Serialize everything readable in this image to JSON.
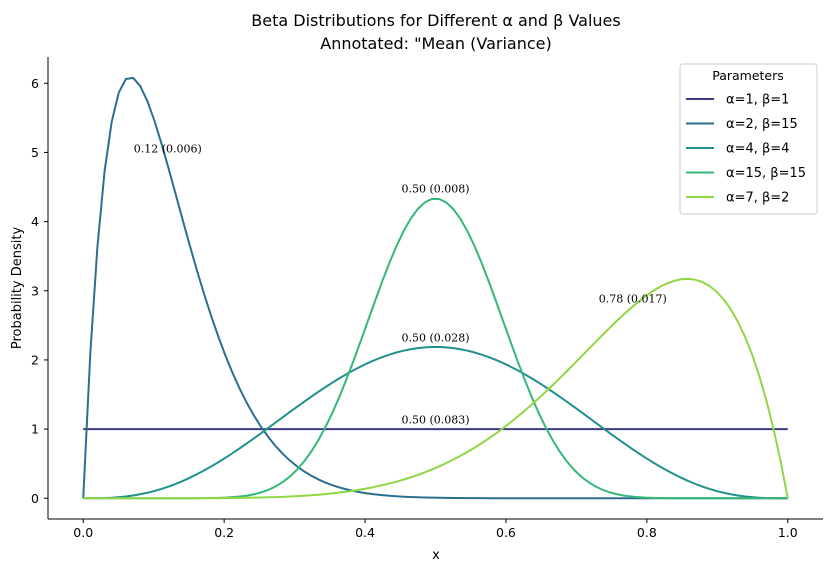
{
  "chart_data": {
    "type": "line",
    "title_line1": "Beta Distributions for Different α and β Values",
    "title_line2": "Annotated: \"Mean (Variance)",
    "xlabel": "x",
    "ylabel": "Probability Density",
    "xlim": [
      -0.05,
      1.05
    ],
    "ylim": [
      -0.3,
      6.38
    ],
    "xticks": [
      0.0,
      0.2,
      0.4,
      0.6,
      0.8,
      1.0
    ],
    "xtick_labels": [
      "0.0",
      "0.2",
      "0.4",
      "0.6",
      "0.8",
      "1.0"
    ],
    "yticks": [
      0,
      1,
      2,
      3,
      4,
      5,
      6
    ],
    "ytick_labels": [
      "0",
      "1",
      "2",
      "3",
      "4",
      "5",
      "6"
    ],
    "grid": false,
    "legend_title": "Parameters",
    "legend_position": "top-right",
    "series": [
      {
        "name": "α=1, β=1",
        "alpha": 1,
        "beta": 1,
        "color": "#3b3b84",
        "annotation": "0.50 (0.083)",
        "annotation_at": [
          0.5,
          1.08
        ]
      },
      {
        "name": "α=2, β=15",
        "alpha": 2,
        "beta": 15,
        "color": "#2c6e90",
        "annotation": "0.12 (0.006)",
        "annotation_at": [
          0.12,
          5.0
        ]
      },
      {
        "name": "α=4, β=4",
        "alpha": 4,
        "beta": 4,
        "color": "#21918c",
        "annotation": "0.50 (0.028)",
        "annotation_at": [
          0.5,
          2.27
        ]
      },
      {
        "name": "α=15, β=15",
        "alpha": 15,
        "beta": 15,
        "color": "#35b779",
        "annotation": "0.50 (0.008)",
        "annotation_at": [
          0.5,
          4.42
        ]
      },
      {
        "name": "α=7, β=2",
        "alpha": 7,
        "beta": 2,
        "color": "#8fd744",
        "annotation": "0.78 (0.017)",
        "annotation_at": [
          0.78,
          2.83
        ]
      }
    ]
  }
}
